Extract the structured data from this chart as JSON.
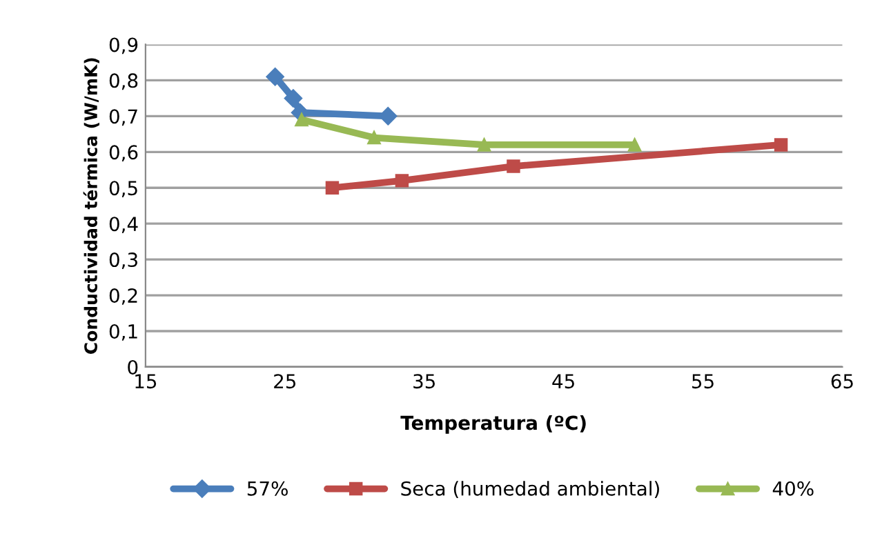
{
  "chart_data": {
    "type": "line",
    "xlabel": "Temperatura (ºC)",
    "ylabel": "Conductividad térmica (W/mK)",
    "xlim": [
      15,
      65
    ],
    "xticks": [
      15,
      25,
      35,
      45,
      55,
      65
    ],
    "ylim": [
      0,
      0.9
    ],
    "yticks": [
      0,
      {
        "value": 0.1,
        "label": "0,1"
      },
      {
        "value": 0.2,
        "label": "0,2"
      },
      {
        "value": 0.3,
        "label": "0,3"
      },
      {
        "value": 0.4,
        "label": "0,4"
      },
      {
        "value": 0.5,
        "label": "0,5"
      },
      {
        "value": 0.6,
        "label": "0,6"
      },
      {
        "value": 0.7,
        "label": "0,7"
      },
      {
        "value": 0.8,
        "label": "0,8"
      },
      {
        "value": 0.9,
        "label": "0,9"
      }
    ],
    "grid": "y",
    "legend": "bottom",
    "series": [
      {
        "name": "57%",
        "color": "#4a7ebb",
        "marker": "diamond",
        "x": [
          24.3,
          25.6,
          26.1,
          32.4
        ],
        "values": [
          0.81,
          0.75,
          0.71,
          0.7
        ]
      },
      {
        "name": "Seca (humedad ambiental)",
        "color": "#be4b48",
        "marker": "square",
        "x": [
          28.4,
          33.4,
          41.4,
          60.6
        ],
        "values": [
          0.5,
          0.52,
          0.56,
          0.62
        ]
      },
      {
        "name": "40%",
        "color": "#98b954",
        "marker": "triangle",
        "x": [
          26.2,
          31.4,
          39.3,
          50.1
        ],
        "values": [
          0.69,
          0.64,
          0.62,
          0.62
        ]
      }
    ]
  }
}
